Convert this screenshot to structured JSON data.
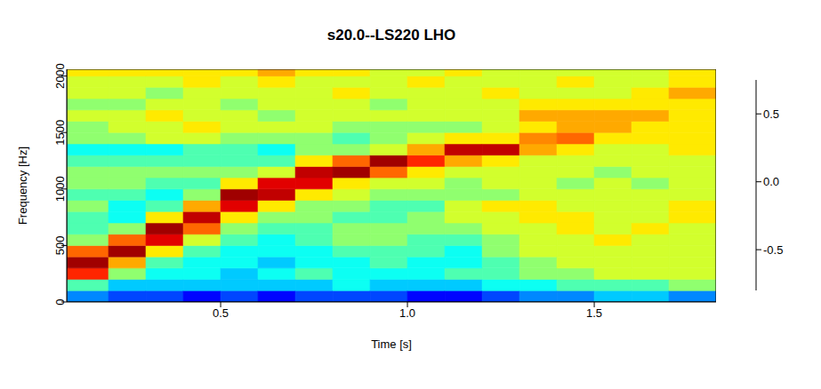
{
  "chart_data": {
    "type": "heatmap",
    "title": "s20.0--LS220 LHO",
    "x_label": "Time [s]",
    "y_label": "Frequency [Hz]",
    "xlim": [
      0.088,
      1.826
    ],
    "xticks": [
      {
        "value": 0.5,
        "label": "0.5"
      },
      {
        "value": 1,
        "label": "1.0"
      },
      {
        "value": 1.5,
        "label": "1.5"
      }
    ],
    "ylim": [
      0,
      2060
    ],
    "yticks": [
      0,
      500,
      1000,
      1500,
      2000
    ],
    "time_bins": [
      0.088,
      0.2,
      0.3,
      0.4,
      0.5,
      0.6,
      0.7,
      0.8,
      0.9,
      1.0,
      1.1,
      1.2,
      1.3,
      1.4,
      1.5,
      1.6,
      1.7,
      1.826
    ],
    "frequency_bins": [
      0,
      100,
      200,
      300,
      400,
      500,
      600,
      700,
      800,
      900,
      1000,
      1100,
      1200,
      1300,
      1400,
      1500,
      1600,
      1700,
      1800,
      1900,
      2000,
      2060
    ],
    "cells": [
      [
        -0.4,
        -0.1,
        0.5,
        0.7,
        0.4,
        0.0,
        -0.1,
        -0.1,
        0.0,
        -0.1,
        0.0,
        0.0,
        -0.1,
        -0.2,
        0.0,
        0.0,
        0.1,
        0.0,
        0.1,
        0.1,
        0.2
      ],
      [
        -0.5,
        -0.3,
        0.0,
        0.3,
        0.7,
        0.4,
        0.0,
        -0.2,
        -0.2,
        -0.1,
        0.0,
        0.0,
        -0.1,
        -0.2,
        0.0,
        0.1,
        0.1,
        0.0,
        0.1,
        0.1,
        0.2
      ],
      [
        -0.5,
        -0.3,
        -0.2,
        -0.1,
        0.2,
        0.6,
        0.7,
        0.2,
        -0.1,
        -0.2,
        -0.1,
        0.0,
        -0.1,
        -0.2,
        0.1,
        0.1,
        0.2,
        0.1,
        0.0,
        0.1,
        0.2
      ],
      [
        -0.6,
        -0.3,
        -0.2,
        -0.2,
        -0.1,
        0.1,
        0.4,
        0.65,
        0.3,
        0.0,
        -0.1,
        0.0,
        -0.1,
        -0.1,
        0.1,
        0.2,
        0.1,
        0.1,
        0.1,
        0.2,
        0.2
      ],
      [
        -0.5,
        -0.3,
        -0.3,
        -0.2,
        -0.2,
        -0.1,
        0.0,
        0.2,
        0.6,
        0.7,
        0.2,
        0.0,
        -0.1,
        -0.1,
        0.0,
        0.1,
        0.1,
        0.0,
        0.1,
        0.1,
        0.2
      ],
      [
        -0.6,
        -0.3,
        -0.2,
        -0.3,
        -0.2,
        -0.2,
        -0.1,
        0.0,
        0.2,
        0.65,
        0.6,
        0.1,
        -0.1,
        -0.2,
        0.0,
        0.1,
        0.0,
        0.1,
        0.1,
        0.2,
        0.3
      ],
      [
        -0.5,
        -0.3,
        -0.1,
        -0.2,
        -0.2,
        -0.1,
        -0.1,
        0.0,
        0.0,
        0.2,
        0.6,
        0.65,
        0.2,
        0.0,
        0.0,
        0.1,
        0.1,
        0.1,
        0.1,
        0.1,
        0.2
      ],
      [
        -0.5,
        -0.2,
        -0.2,
        -0.2,
        -0.1,
        0.0,
        0.0,
        -0.1,
        0.0,
        0.1,
        0.2,
        0.7,
        0.4,
        0.0,
        -0.1,
        0.0,
        0.1,
        0.1,
        0.2,
        0.1,
        0.2
      ],
      [
        -0.5,
        -0.3,
        -0.2,
        -0.1,
        -0.1,
        0.0,
        0.0,
        -0.1,
        -0.1,
        0.0,
        0.1,
        0.4,
        0.7,
        0.1,
        0.0,
        0.0,
        0.1,
        0.0,
        0.1,
        0.1,
        0.1
      ],
      [
        -0.6,
        -0.3,
        -0.2,
        -0.2,
        -0.1,
        -0.1,
        0.0,
        0.0,
        -0.1,
        0.0,
        0.1,
        0.2,
        0.5,
        0.3,
        0.1,
        0.0,
        0.1,
        0.1,
        0.1,
        0.2,
        0.1
      ],
      [
        -0.6,
        -0.3,
        -0.1,
        -0.2,
        -0.2,
        -0.1,
        0.0,
        0.1,
        0.1,
        0.0,
        0.0,
        0.1,
        0.3,
        0.65,
        0.2,
        0.0,
        0.1,
        0.1,
        0.1,
        0.1,
        0.2
      ],
      [
        -0.5,
        -0.2,
        -0.1,
        -0.1,
        0.0,
        0.0,
        0.1,
        0.1,
        0.2,
        0.0,
        0.1,
        0.1,
        0.2,
        0.65,
        0.2,
        0.1,
        0.1,
        0.1,
        0.2,
        0.1,
        0.1
      ],
      [
        -0.4,
        -0.2,
        0.0,
        0.0,
        0.1,
        0.1,
        0.1,
        0.2,
        0.2,
        0.1,
        0.1,
        0.1,
        0.1,
        0.3,
        0.35,
        0.2,
        0.3,
        0.2,
        0.1,
        0.1,
        0.1
      ],
      [
        -0.4,
        -0.1,
        0.0,
        0.1,
        0.1,
        0.1,
        0.2,
        0.2,
        0.1,
        0.1,
        0.0,
        0.1,
        0.1,
        0.2,
        0.4,
        0.3,
        0.3,
        0.2,
        0.1,
        0.2,
        0.1
      ],
      [
        -0.3,
        -0.1,
        0.1,
        0.1,
        0.1,
        0.2,
        0.1,
        0.1,
        0.1,
        0.1,
        0.1,
        0.0,
        0.1,
        0.1,
        0.2,
        0.3,
        0.3,
        0.2,
        0.1,
        0.1,
        0.1
      ],
      [
        -0.3,
        -0.1,
        0.1,
        0.1,
        0.1,
        0.1,
        0.2,
        0.1,
        0.1,
        0.1,
        0.0,
        0.1,
        0.1,
        0.1,
        0.2,
        0.2,
        0.3,
        0.2,
        0.2,
        0.1,
        0.1
      ],
      [
        -0.4,
        0.0,
        0.1,
        0.1,
        0.1,
        0.1,
        0.1,
        0.2,
        0.2,
        0.1,
        0.1,
        0.1,
        0.1,
        0.2,
        0.2,
        0.2,
        0.2,
        0.2,
        0.3,
        0.2,
        0.2
      ]
    ],
    "colorbar": {
      "range": [
        -0.8,
        0.75
      ],
      "ticks": [
        -0.5,
        {
          "value": 0,
          "label": "0.0"
        },
        0.5
      ]
    }
  }
}
